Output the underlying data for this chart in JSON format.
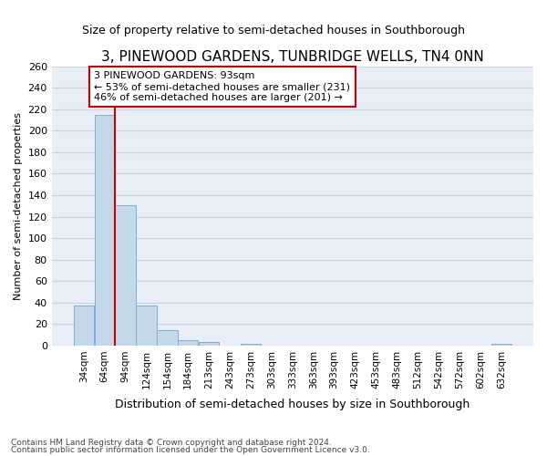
{
  "title": "3, PINEWOOD GARDENS, TUNBRIDGE WELLS, TN4 0NN",
  "subtitle": "Size of property relative to semi-detached houses in Southborough",
  "xlabel": "Distribution of semi-detached houses by size in Southborough",
  "ylabel": "Number of semi-detached properties",
  "categories": [
    "34sqm",
    "64sqm",
    "94sqm",
    "124sqm",
    "154sqm",
    "184sqm",
    "213sqm",
    "243sqm",
    "273sqm",
    "303sqm",
    "333sqm",
    "363sqm",
    "393sqm",
    "423sqm",
    "453sqm",
    "483sqm",
    "512sqm",
    "542sqm",
    "572sqm",
    "602sqm",
    "632sqm"
  ],
  "values": [
    37,
    215,
    131,
    37,
    14,
    5,
    3,
    0,
    2,
    0,
    0,
    0,
    0,
    0,
    0,
    0,
    0,
    0,
    0,
    0,
    2
  ],
  "bar_color": "#c5d8ea",
  "bar_edge_color": "#7bafd4",
  "property_line_bin_index": 2,
  "property_sqm": 93,
  "property_label": "3 PINEWOOD GARDENS: 93sqm",
  "pct_smaller": 53,
  "pct_smaller_count": 231,
  "pct_larger": 46,
  "pct_larger_count": 201,
  "annotation_box_color": "#ffffff",
  "annotation_box_edge_color": "#cc0000",
  "vline_color": "#cc0000",
  "grid_color": "#c8d4e3",
  "background_color": "#e8eef6",
  "fig_background": "#ffffff",
  "ylim": [
    0,
    260
  ],
  "yticks": [
    0,
    20,
    40,
    60,
    80,
    100,
    120,
    140,
    160,
    180,
    200,
    220,
    240,
    260
  ],
  "footer1": "Contains HM Land Registry data © Crown copyright and database right 2024.",
  "footer2": "Contains public sector information licensed under the Open Government Licence v3.0."
}
